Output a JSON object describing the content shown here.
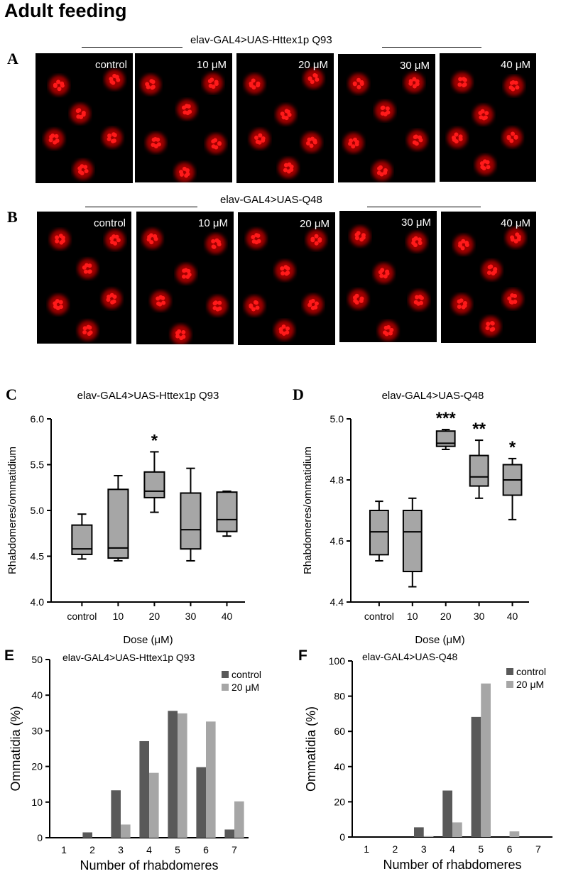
{
  "figure_title": "Adult feeding",
  "colors": {
    "box_fill": "#a6a6a6",
    "control_bar": "#595959",
    "treated_bar": "#a6a6a6",
    "rhabdomere": "#ff1a1a",
    "background_black": "#000000"
  },
  "panels": {
    "A": {
      "letter": "A",
      "title": "elav-GAL4>UAS-Httex1p Q93",
      "images": [
        {
          "label": "control"
        },
        {
          "label": "10 μM"
        },
        {
          "label": "20 μM"
        },
        {
          "label": "30 μM"
        },
        {
          "label": "40 μM"
        }
      ]
    },
    "B": {
      "letter": "B",
      "title": "elav-GAL4>UAS-Q48",
      "images": [
        {
          "label": "control"
        },
        {
          "label": "10 μM"
        },
        {
          "label": "20 μM"
        },
        {
          "label": "30 μM"
        },
        {
          "label": "40 μM"
        }
      ]
    },
    "C": {
      "letter": "C"
    },
    "D": {
      "letter": "D"
    },
    "E": {
      "letter": "E"
    },
    "F": {
      "letter": "F"
    }
  },
  "chart_data": [
    {
      "panel": "C",
      "type": "box",
      "title": "elav-GAL4>UAS-Httex1p Q93",
      "xlabel": "Dose (μM)",
      "ylabel": "Rhabdomeres/ommatidium",
      "categories": [
        "control",
        "10",
        "20",
        "30",
        "40"
      ],
      "ylim": [
        4.0,
        6.0
      ],
      "yticks": [
        "4.0",
        "4.5",
        "5.0",
        "5.5",
        "6.0"
      ],
      "boxes": [
        {
          "min": 4.47,
          "q1": 4.52,
          "median": 4.58,
          "q3": 4.84,
          "max": 4.96,
          "sig": ""
        },
        {
          "min": 4.45,
          "q1": 4.48,
          "median": 4.59,
          "q3": 5.23,
          "max": 5.38,
          "sig": ""
        },
        {
          "min": 4.98,
          "q1": 5.14,
          "median": 5.21,
          "q3": 5.42,
          "max": 5.64,
          "sig": "*"
        },
        {
          "min": 4.45,
          "q1": 4.58,
          "median": 4.79,
          "q3": 5.19,
          "max": 5.46,
          "sig": ""
        },
        {
          "min": 4.72,
          "q1": 4.77,
          "median": 4.9,
          "q3": 5.2,
          "max": 5.21,
          "sig": ""
        }
      ]
    },
    {
      "panel": "D",
      "type": "box",
      "title": "elav-GAL4>UAS-Q48",
      "xlabel": "Dose (μM)",
      "ylabel": "Rhabdomeres/ommatidium",
      "categories": [
        "control",
        "10",
        "20",
        "30",
        "40"
      ],
      "ylim": [
        4.4,
        5.0
      ],
      "yticks": [
        "4.4",
        "4.6",
        "4.8",
        "5.0"
      ],
      "boxes": [
        {
          "min": 4.535,
          "q1": 4.555,
          "median": 4.63,
          "q3": 4.7,
          "max": 4.73,
          "sig": ""
        },
        {
          "min": 4.45,
          "q1": 4.5,
          "median": 4.63,
          "q3": 4.7,
          "max": 4.74,
          "sig": ""
        },
        {
          "min": 4.9,
          "q1": 4.91,
          "median": 4.92,
          "q3": 4.96,
          "max": 4.965,
          "sig": "***"
        },
        {
          "min": 4.74,
          "q1": 4.78,
          "median": 4.81,
          "q3": 4.88,
          "max": 4.93,
          "sig": "**"
        },
        {
          "min": 4.67,
          "q1": 4.75,
          "median": 4.8,
          "q3": 4.85,
          "max": 4.87,
          "sig": "*"
        }
      ]
    },
    {
      "panel": "E",
      "type": "bar",
      "title": "elav-GAL4>UAS-Httex1p Q93",
      "xlabel": "Number of rhabdomeres",
      "ylabel": "Ommatidia (%)",
      "categories": [
        "1",
        "2",
        "3",
        "4",
        "5",
        "6",
        "7"
      ],
      "ylim": [
        0,
        50
      ],
      "yticks": [
        "0",
        "10",
        "20",
        "30",
        "40",
        "50"
      ],
      "legend_position": "top-right",
      "series": [
        {
          "name": "control",
          "values": [
            0,
            1.5,
            13.3,
            27.1,
            35.6,
            19.8,
            2.3
          ]
        },
        {
          "name": "20 μM",
          "values": [
            0,
            0,
            3.7,
            18.2,
            34.9,
            32.6,
            10.2
          ]
        }
      ]
    },
    {
      "panel": "F",
      "type": "bar",
      "title": "elav-GAL4>UAS-Q48",
      "xlabel": "Number of rhabdomeres",
      "ylabel": "Ommatidia (%)",
      "categories": [
        "1",
        "2",
        "3",
        "4",
        "5",
        "6",
        "7"
      ],
      "ylim": [
        0,
        100
      ],
      "yticks": [
        "0",
        "20",
        "40",
        "60",
        "80",
        "100"
      ],
      "legend_position": "top-right",
      "series": [
        {
          "name": "control",
          "values": [
            0,
            0,
            5.5,
            26.4,
            68.2,
            0,
            0
          ]
        },
        {
          "name": "20 μM",
          "values": [
            0,
            0,
            0.5,
            8.3,
            87.2,
            3.2,
            0
          ]
        }
      ]
    }
  ]
}
